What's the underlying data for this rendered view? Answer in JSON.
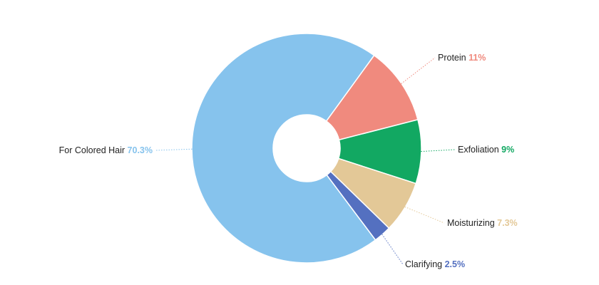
{
  "chart_data": {
    "type": "pie",
    "donut": true,
    "title": "",
    "start_slice": "Protein",
    "slices": [
      {
        "name": "Protein",
        "label": "Protein",
        "value": 11,
        "value_label": "11%",
        "color": "#f08a7e",
        "label_side": "right"
      },
      {
        "name": "Exfoliation",
        "label": "Exfoliation",
        "value": 9,
        "value_label": "9%",
        "color": "#12a862",
        "label_side": "right"
      },
      {
        "name": "Moisturizing",
        "label": "Moisturizing",
        "value": 7.3,
        "value_label": "7.3%",
        "color": "#e3c897",
        "label_side": "right"
      },
      {
        "name": "Clarifying",
        "label": "Clarifying",
        "value": 2.5,
        "value_label": "2.5%",
        "color": "#5470c0",
        "label_side": "right"
      },
      {
        "name": "For Colored Hair",
        "label": "For Colored Hair",
        "value": 70.3,
        "value_label": "70.3%",
        "color": "#86c3ed",
        "label_side": "left"
      }
    ]
  }
}
